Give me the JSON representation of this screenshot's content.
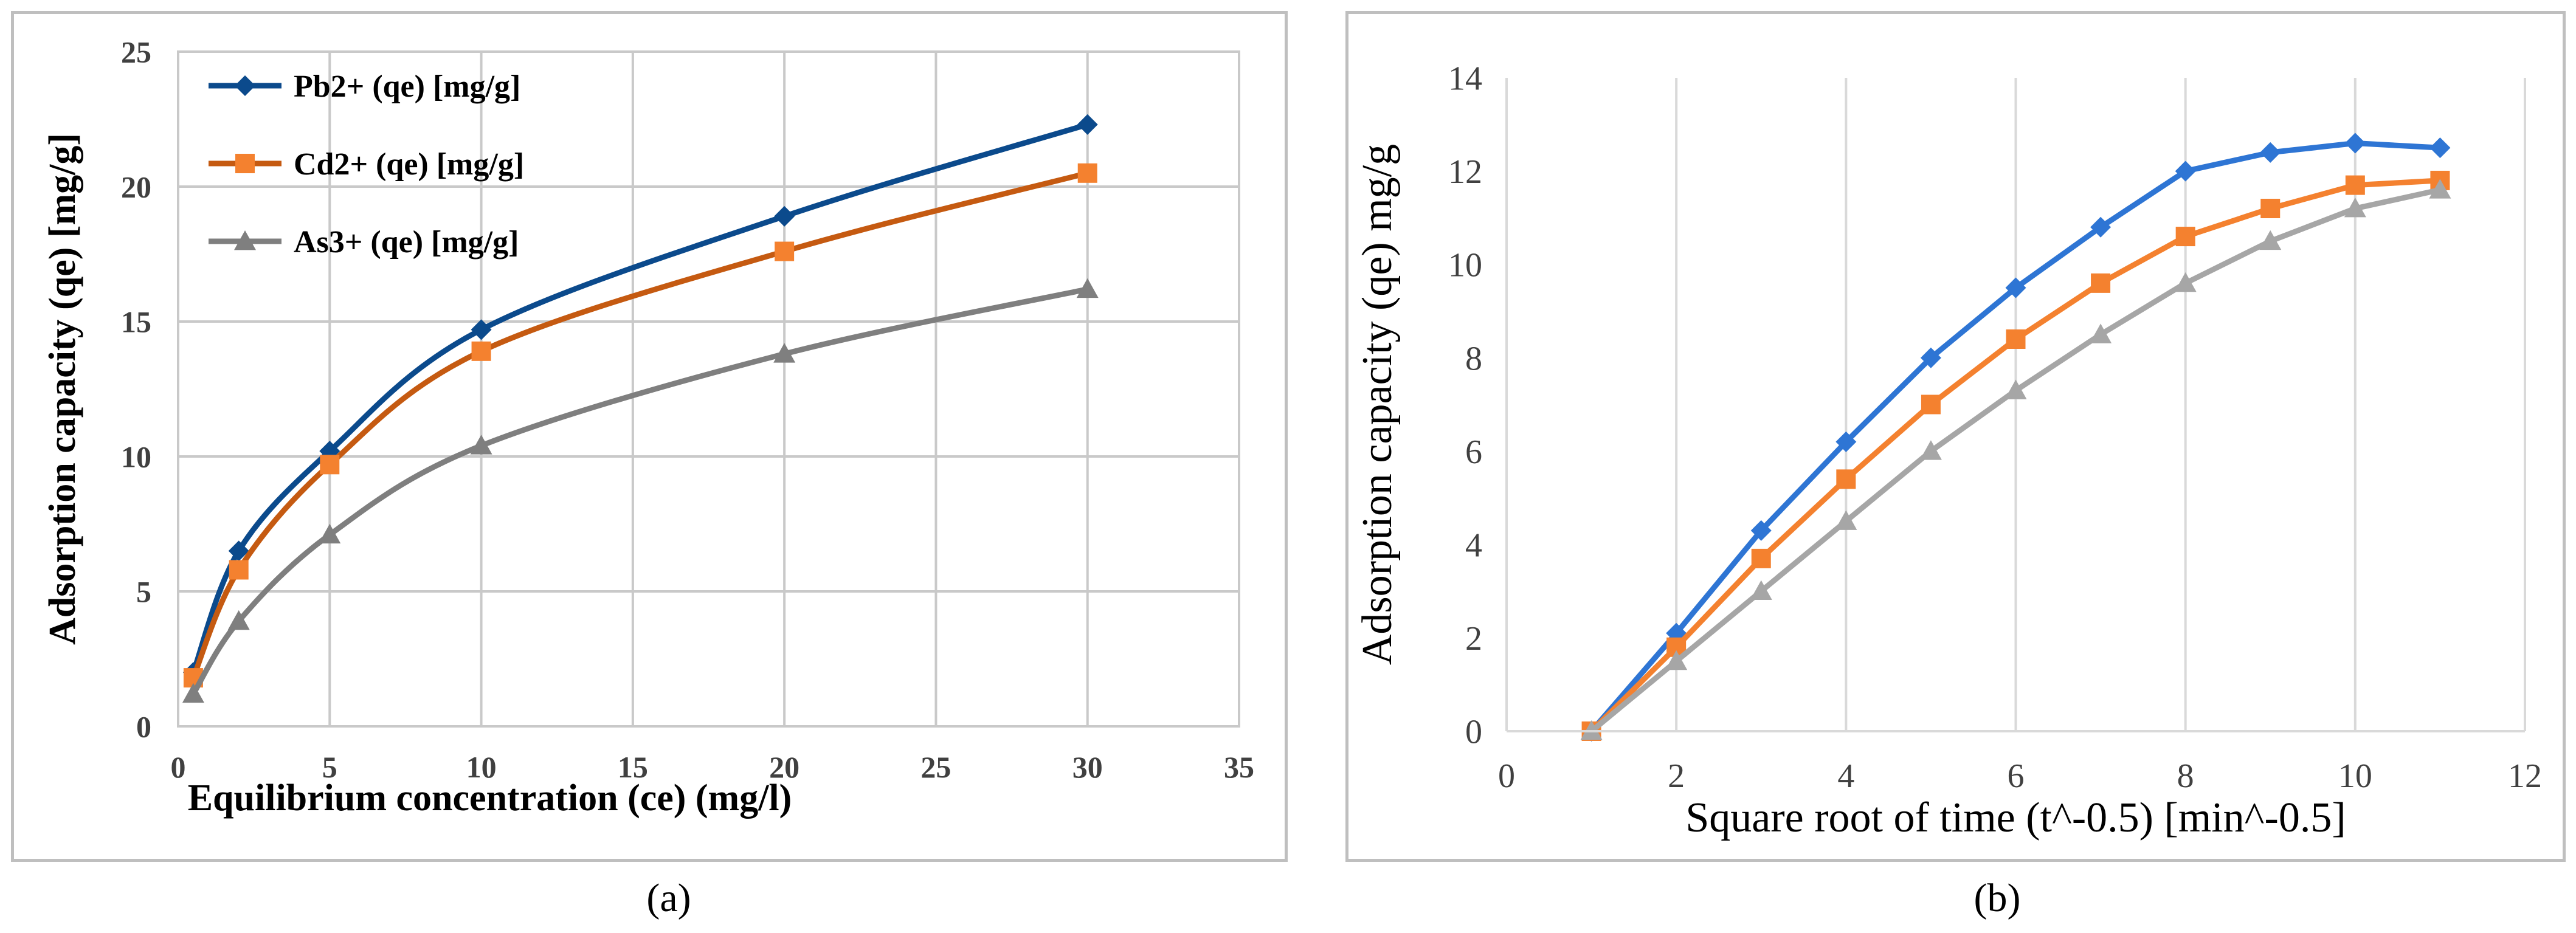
{
  "figure": {
    "caption_a": "(a)",
    "caption_b": "(b)"
  },
  "chart_data": [
    {
      "type": "line",
      "title": "",
      "xlabel": "Equilibrium concentration (ce) (mg/l)",
      "ylabel": "Adsorption capacity (qe) [mg/g]",
      "xlim": [
        0,
        35
      ],
      "ylim": [
        0,
        25
      ],
      "xticks": [
        0,
        5,
        10,
        15,
        20,
        25,
        30,
        35
      ],
      "yticks": [
        0,
        5,
        10,
        15,
        20,
        25
      ],
      "grid": true,
      "legend": "top-left",
      "series": [
        {
          "name": "Pb2+ (qe) [mg/g]",
          "color": "#0b4a8c",
          "marker": "diamond",
          "smooth": true,
          "x": [
            0.5,
            2,
            5,
            10,
            20,
            30
          ],
          "y": [
            2.0,
            6.5,
            10.2,
            14.7,
            18.9,
            22.3
          ]
        },
        {
          "name": "Cd2+ (qe) [mg/g]",
          "color": "#c55a11",
          "marker_fill": "#f4812f",
          "marker": "square",
          "smooth": true,
          "x": [
            0.5,
            2,
            5,
            10,
            20,
            30
          ],
          "y": [
            1.8,
            5.8,
            9.7,
            13.9,
            17.6,
            20.5
          ]
        },
        {
          "name": "As3+ (qe) [mg/g]",
          "color": "#7f7f7f",
          "marker": "triangle",
          "smooth": true,
          "x": [
            0.5,
            2,
            5,
            10,
            20,
            30
          ],
          "y": [
            1.2,
            3.9,
            7.1,
            10.4,
            13.8,
            16.2
          ]
        }
      ]
    },
    {
      "type": "line",
      "title": "",
      "xlabel": "Square root of time (t^-0.5) [min^-0.5]",
      "ylabel": "Adsorption capacity (qe) mg/g",
      "xlim": [
        0,
        12
      ],
      "ylim": [
        0,
        14
      ],
      "xticks": [
        0,
        2,
        4,
        6,
        8,
        10,
        12
      ],
      "yticks": [
        0,
        2,
        4,
        6,
        8,
        10,
        12,
        14
      ],
      "grid": true,
      "series": [
        {
          "color": "#2e75d4",
          "marker": "diamond",
          "x": [
            1,
            2,
            3,
            4,
            5,
            6,
            7,
            8,
            9,
            10,
            11
          ],
          "y": [
            0,
            2.1,
            4.3,
            6.2,
            8.0,
            9.5,
            10.8,
            12.0,
            12.4,
            12.6,
            12.5
          ]
        },
        {
          "color": "#f4812f",
          "marker": "square",
          "x": [
            1,
            2,
            3,
            4,
            5,
            6,
            7,
            8,
            9,
            10,
            11
          ],
          "y": [
            0,
            1.8,
            3.7,
            5.4,
            7.0,
            8.4,
            9.6,
            10.6,
            11.2,
            11.7,
            11.8
          ]
        },
        {
          "color": "#a6a6a6",
          "marker": "triangle",
          "x": [
            1,
            2,
            3,
            4,
            5,
            6,
            7,
            8,
            9,
            10,
            11
          ],
          "y": [
            0,
            1.5,
            3.0,
            4.5,
            6.0,
            7.3,
            8.5,
            9.6,
            10.5,
            11.2,
            11.6
          ]
        }
      ]
    }
  ]
}
